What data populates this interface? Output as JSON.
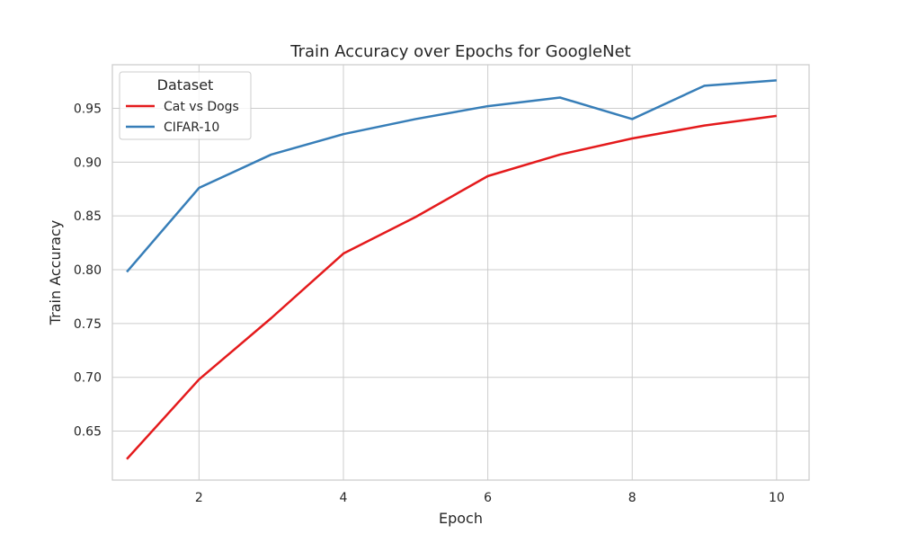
{
  "chart_data": {
    "type": "line",
    "title": "Train Accuracy over Epochs for GoogleNet",
    "xlabel": "Epoch",
    "ylabel": "Train Accuracy",
    "xlim": [
      0.8,
      10.45
    ],
    "ylim": [
      0.6045,
      0.9905
    ],
    "xticks": [
      2,
      4,
      6,
      8,
      10
    ],
    "xtick_labels": [
      "2",
      "4",
      "6",
      "8",
      "10"
    ],
    "yticks": [
      0.65,
      0.7,
      0.75,
      0.8,
      0.85,
      0.9,
      0.95
    ],
    "ytick_labels": [
      "0.65",
      "0.70",
      "0.75",
      "0.80",
      "0.85",
      "0.90",
      "0.95"
    ],
    "grid": true,
    "legend": {
      "title": "Dataset",
      "placement": "upper-left"
    },
    "x": [
      1,
      2,
      3,
      4,
      5,
      6,
      7,
      8,
      9,
      10
    ],
    "series": [
      {
        "name": "Cat vs Dogs",
        "color": "#e41a1c",
        "values": [
          0.624,
          0.698,
          0.755,
          0.815,
          0.849,
          0.887,
          0.907,
          0.922,
          0.934,
          0.943
        ]
      },
      {
        "name": "CIFAR-10",
        "color": "#377eb8",
        "values": [
          0.798,
          0.876,
          0.907,
          0.926,
          0.94,
          0.952,
          0.96,
          0.94,
          0.971,
          0.976
        ]
      }
    ]
  }
}
